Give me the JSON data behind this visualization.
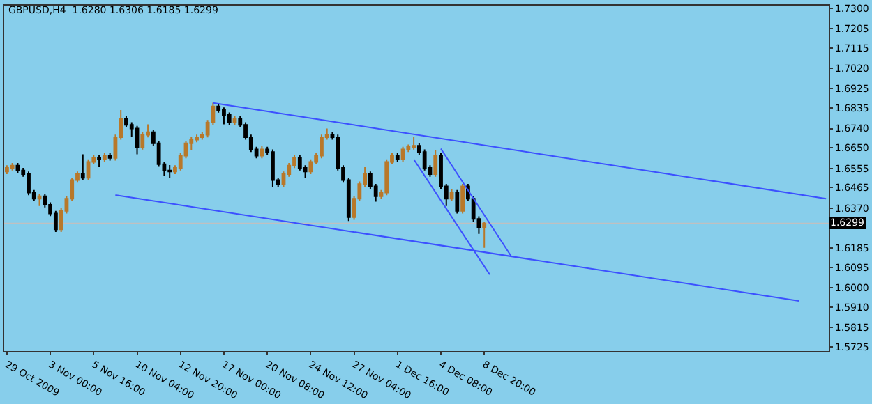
{
  "chart_data": {
    "type": "candlestick",
    "title": "GBPUSD,H4  1.6280 1.6306 1.6185 1.6299",
    "categories": [
      "29 Oct 2009",
      null,
      null,
      null,
      null,
      null,
      null,
      null,
      "3 Nov 00:00",
      null,
      null,
      null,
      null,
      null,
      null,
      null,
      "5 Nov 16:00",
      null,
      null,
      null,
      null,
      null,
      null,
      null,
      "10 Nov 04:00",
      null,
      null,
      null,
      null,
      null,
      null,
      null,
      "12 Nov 20:00",
      null,
      null,
      null,
      null,
      null,
      null,
      null,
      "17 Nov 00:00",
      null,
      null,
      null,
      null,
      null,
      null,
      null,
      "20 Nov 08:00",
      null,
      null,
      null,
      null,
      null,
      null,
      null,
      "24 Nov 12:00",
      null,
      null,
      null,
      null,
      null,
      null,
      null,
      "27 Nov 04:00",
      null,
      null,
      null,
      null,
      null,
      null,
      null,
      "1 Dec 16:00",
      null,
      null,
      null,
      null,
      null,
      null,
      null,
      "4 Dec 08:00",
      null,
      null,
      null,
      null,
      null,
      null,
      null,
      "8 Dec 20:00",
      null,
      null,
      null,
      null,
      null,
      null,
      null,
      null,
      null,
      null,
      null,
      null,
      null,
      null,
      null,
      null,
      null,
      null,
      null,
      null,
      null,
      null,
      null,
      null,
      null,
      null,
      null,
      null,
      null,
      null,
      null,
      null,
      null,
      null,
      null,
      null,
      null,
      null,
      null,
      null,
      null,
      null,
      null,
      null,
      null,
      null,
      null,
      null,
      null,
      null,
      null,
      null,
      null,
      null,
      null,
      null,
      null,
      null,
      null,
      null,
      null,
      null,
      null
    ],
    "ohlc": [
      [
        1.654,
        1.6569,
        1.6528,
        1.6557
      ],
      [
        1.6557,
        1.658,
        1.6545,
        1.6568
      ],
      [
        1.6568,
        1.658,
        1.6533,
        1.6545
      ],
      [
        1.6545,
        1.6557,
        1.6516,
        1.6528
      ],
      [
        1.6528,
        1.654,
        1.643,
        1.6442
      ],
      [
        1.6442,
        1.6454,
        1.6402,
        1.6414
      ],
      [
        1.6414,
        1.6437,
        1.638,
        1.6425
      ],
      [
        1.6425,
        1.6437,
        1.6373,
        1.6385
      ],
      [
        1.6385,
        1.6397,
        1.6333,
        1.6345
      ],
      [
        1.6345,
        1.6357,
        1.6259,
        1.6271
      ],
      [
        1.6271,
        1.6369,
        1.6259,
        1.6357
      ],
      [
        1.6357,
        1.6426,
        1.6345,
        1.6414
      ],
      [
        1.6414,
        1.6512,
        1.6402,
        1.65
      ],
      [
        1.65,
        1.654,
        1.6488,
        1.6528
      ],
      [
        1.6528,
        1.662,
        1.6499,
        1.6511
      ],
      [
        1.6511,
        1.6597,
        1.6499,
        1.6585
      ],
      [
        1.6585,
        1.6615,
        1.6573,
        1.6603
      ],
      [
        1.6603,
        1.6615,
        1.656,
        1.6597
      ],
      [
        1.6597,
        1.6626,
        1.6585,
        1.6614
      ],
      [
        1.6614,
        1.6626,
        1.6591,
        1.6603
      ],
      [
        1.6603,
        1.6712,
        1.6591,
        1.67
      ],
      [
        1.67,
        1.6826,
        1.6688,
        1.6786
      ],
      [
        1.6786,
        1.6798,
        1.6745,
        1.6757
      ],
      [
        1.6757,
        1.6769,
        1.67,
        1.674
      ],
      [
        1.674,
        1.6752,
        1.662,
        1.6654
      ],
      [
        1.6654,
        1.6723,
        1.6642,
        1.6711
      ],
      [
        1.6711,
        1.676,
        1.6699,
        1.6723
      ],
      [
        1.6723,
        1.6735,
        1.6659,
        1.6671
      ],
      [
        1.6671,
        1.6683,
        1.6562,
        1.6574
      ],
      [
        1.6574,
        1.6586,
        1.652,
        1.6545
      ],
      [
        1.6545,
        1.657,
        1.651,
        1.654
      ],
      [
        1.654,
        1.6569,
        1.6528,
        1.6557
      ],
      [
        1.6557,
        1.6626,
        1.6545,
        1.6614
      ],
      [
        1.6614,
        1.6683,
        1.6602,
        1.6671
      ],
      [
        1.6671,
        1.67,
        1.664,
        1.6688
      ],
      [
        1.6688,
        1.6712,
        1.6676,
        1.67
      ],
      [
        1.67,
        1.6723,
        1.6688,
        1.6711
      ],
      [
        1.6711,
        1.678,
        1.6699,
        1.6768
      ],
      [
        1.6768,
        1.686,
        1.6756,
        1.6843
      ],
      [
        1.6843,
        1.6855,
        1.6814,
        1.6826
      ],
      [
        1.6826,
        1.6838,
        1.676,
        1.6803
      ],
      [
        1.6803,
        1.6815,
        1.6756,
        1.6768
      ],
      [
        1.6768,
        1.6798,
        1.6756,
        1.6786
      ],
      [
        1.6786,
        1.6798,
        1.6745,
        1.6757
      ],
      [
        1.6757,
        1.6769,
        1.6688,
        1.67
      ],
      [
        1.67,
        1.6712,
        1.6631,
        1.6643
      ],
      [
        1.6643,
        1.6655,
        1.6602,
        1.6614
      ],
      [
        1.6614,
        1.666,
        1.6602,
        1.6643
      ],
      [
        1.6643,
        1.6655,
        1.6619,
        1.6631
      ],
      [
        1.6631,
        1.6643,
        1.647,
        1.65
      ],
      [
        1.65,
        1.6512,
        1.647,
        1.6482
      ],
      [
        1.6482,
        1.654,
        1.647,
        1.6528
      ],
      [
        1.6528,
        1.658,
        1.6516,
        1.6568
      ],
      [
        1.6568,
        1.6615,
        1.6556,
        1.6603
      ],
      [
        1.6603,
        1.6615,
        1.6545,
        1.6557
      ],
      [
        1.6557,
        1.6569,
        1.651,
        1.654
      ],
      [
        1.654,
        1.6597,
        1.6528,
        1.6585
      ],
      [
        1.6585,
        1.6626,
        1.6573,
        1.6614
      ],
      [
        1.6614,
        1.6712,
        1.6602,
        1.67
      ],
      [
        1.67,
        1.674,
        1.6688,
        1.6711
      ],
      [
        1.6711,
        1.6723,
        1.6688,
        1.67
      ],
      [
        1.67,
        1.6712,
        1.6545,
        1.6557
      ],
      [
        1.6557,
        1.6569,
        1.6488,
        1.65
      ],
      [
        1.65,
        1.6512,
        1.631,
        1.6328
      ],
      [
        1.6328,
        1.6426,
        1.6316,
        1.6414
      ],
      [
        1.6414,
        1.6494,
        1.6402,
        1.6482
      ],
      [
        1.6482,
        1.656,
        1.647,
        1.6528
      ],
      [
        1.6528,
        1.654,
        1.6459,
        1.6471
      ],
      [
        1.6471,
        1.6483,
        1.64,
        1.6425
      ],
      [
        1.6425,
        1.6454,
        1.6413,
        1.6442
      ],
      [
        1.6442,
        1.6597,
        1.643,
        1.6585
      ],
      [
        1.6585,
        1.6626,
        1.6573,
        1.6614
      ],
      [
        1.6614,
        1.6626,
        1.6585,
        1.6597
      ],
      [
        1.6597,
        1.6655,
        1.6585,
        1.6643
      ],
      [
        1.6643,
        1.6666,
        1.6631,
        1.6654
      ],
      [
        1.6654,
        1.67,
        1.6642,
        1.666
      ],
      [
        1.666,
        1.6672,
        1.6619,
        1.6631
      ],
      [
        1.6631,
        1.6643,
        1.6545,
        1.6557
      ],
      [
        1.6557,
        1.6569,
        1.6516,
        1.6528
      ],
      [
        1.6528,
        1.664,
        1.6516,
        1.6614
      ],
      [
        1.6614,
        1.6626,
        1.6459,
        1.6471
      ],
      [
        1.6471,
        1.6483,
        1.638,
        1.6414
      ],
      [
        1.6414,
        1.646,
        1.6402,
        1.6442
      ],
      [
        1.6442,
        1.6454,
        1.6345,
        1.6357
      ],
      [
        1.6357,
        1.6483,
        1.6345,
        1.6471
      ],
      [
        1.6471,
        1.6483,
        1.6402,
        1.6414
      ],
      [
        1.6414,
        1.6426,
        1.6308,
        1.632
      ],
      [
        1.632,
        1.6332,
        1.625,
        1.628
      ],
      [
        1.628,
        1.6306,
        1.6185,
        1.6299
      ],
      null,
      null,
      null,
      null,
      null,
      null,
      null,
      null,
      null,
      null,
      null,
      null,
      null,
      null,
      null,
      null,
      null,
      null,
      null,
      null,
      null,
      null,
      null,
      null,
      null,
      null,
      null,
      null,
      null,
      null,
      null,
      null,
      null,
      null,
      null,
      null,
      null,
      null,
      null,
      null,
      null,
      null,
      null,
      null,
      null,
      null,
      null,
      null,
      null,
      null,
      null,
      null,
      null,
      null,
      null,
      null,
      null,
      null,
      null,
      null,
      null,
      null,
      null
    ],
    "colors": [
      "#b8782a",
      "#b8782a",
      "#000000",
      "#000000",
      "#000000",
      "#000000",
      "#b8782a",
      "#000000",
      "#000000",
      "#000000",
      "#b8782a",
      "#b8782a",
      "#b8782a",
      "#b8782a",
      "#000000",
      "#b8782a",
      "#b8782a",
      "#000000",
      "#b8782a",
      "#000000",
      "#b8782a",
      "#b8782a",
      "#000000",
      "#000000",
      "#000000",
      "#b8782a",
      "#b8782a",
      "#000000",
      "#000000",
      "#000000",
      "#000000",
      "#b8782a",
      "#b8782a",
      "#b8782a",
      "#b8782a",
      "#b8782a",
      "#b8782a",
      "#b8782a",
      "#b8782a",
      "#000000",
      "#000000",
      "#000000",
      "#b8782a",
      "#000000",
      "#000000",
      "#000000",
      "#000000",
      "#b8782a",
      "#000000",
      "#000000",
      "#000000",
      "#b8782a",
      "#b8782a",
      "#b8782a",
      "#000000",
      "#000000",
      "#b8782a",
      "#b8782a",
      "#b8782a",
      "#b8782a",
      "#000000",
      "#000000",
      "#000000",
      "#000000",
      "#b8782a",
      "#b8782a",
      "#b8782a",
      "#000000",
      "#000000",
      "#b8782a",
      "#b8782a",
      "#b8782a",
      "#000000",
      "#b8782a",
      "#b8782a",
      "#b8782a",
      "#000000",
      "#000000",
      "#000000",
      "#b8782a",
      "#000000",
      "#000000",
      "#b8782a",
      "#000000",
      "#b8782a",
      "#000000",
      "#000000",
      "#000000",
      "#b8782a",
      null,
      null,
      null,
      null,
      null,
      null,
      null,
      null,
      null,
      null,
      null,
      null,
      null,
      null,
      null,
      null,
      null,
      null,
      null,
      null,
      null,
      null,
      null,
      null,
      null,
      null,
      null,
      null,
      null,
      null,
      null,
      null,
      null,
      null,
      null,
      null,
      null,
      null,
      null,
      null,
      null,
      null,
      null,
      null,
      null,
      null,
      null,
      null,
      null,
      null,
      null,
      null,
      null,
      null,
      null,
      null,
      null,
      null,
      null,
      null,
      null,
      null,
      null
    ],
    "series": [
      {
        "type": "line",
        "color": "#3c50ff",
        "values": [
          null,
          null,
          null,
          null,
          null,
          null,
          null,
          null,
          null,
          null,
          null,
          null,
          null,
          null,
          null,
          null,
          null,
          null,
          null,
          null,
          null,
          null,
          null,
          null,
          null,
          null,
          null,
          null,
          null,
          null,
          null,
          null,
          null,
          null,
          null,
          null,
          null,
          null,
          1.6859,
          null,
          null,
          null,
          null,
          null,
          null,
          null,
          null,
          null,
          null,
          null,
          null,
          null,
          null,
          null,
          null,
          null,
          null,
          null,
          null,
          null,
          null,
          null,
          null,
          null,
          null,
          null,
          null,
          null,
          null,
          null,
          null,
          null,
          null,
          null,
          null,
          null,
          null,
          null,
          null,
          null,
          null,
          null,
          null,
          null,
          null,
          null,
          null,
          null,
          null,
          null,
          null,
          null,
          null,
          null,
          null,
          null,
          null,
          null,
          null,
          null,
          null,
          null,
          null,
          null,
          null,
          null,
          null,
          null,
          null,
          null,
          null,
          null,
          null,
          null,
          null,
          null,
          null,
          null,
          null,
          null,
          null,
          null,
          null,
          null,
          null,
          null,
          null,
          null,
          null,
          null,
          null,
          null,
          null,
          null,
          null,
          null,
          null,
          null,
          null,
          null,
          null,
          null,
          null,
          null,
          null,
          null,
          null,
          null,
          null,
          null,
          null,
          1.6414
        ]
      },
      {
        "type": "line",
        "color": "#3c50ff",
        "values": [
          null,
          null,
          null,
          null,
          null,
          null,
          null,
          null,
          null,
          null,
          null,
          null,
          null,
          null,
          null,
          null,
          null,
          null,
          null,
          null,
          1.6431,
          null,
          null,
          null,
          null,
          null,
          null,
          null,
          null,
          null,
          null,
          null,
          null,
          null,
          null,
          null,
          null,
          null,
          null,
          null,
          null,
          null,
          null,
          null,
          null,
          null,
          null,
          null,
          null,
          null,
          null,
          null,
          null,
          null,
          null,
          null,
          null,
          null,
          null,
          null,
          null,
          null,
          null,
          null,
          null,
          null,
          null,
          null,
          null,
          null,
          null,
          null,
          null,
          null,
          null,
          null,
          null,
          null,
          null,
          null,
          null,
          null,
          null,
          null,
          null,
          null,
          null,
          null,
          null,
          null,
          null,
          null,
          null,
          null,
          null,
          null,
          null,
          null,
          null,
          null,
          null,
          null,
          null,
          null,
          null,
          null,
          null,
          null,
          null,
          null,
          null,
          null,
          null,
          null,
          null,
          null,
          null,
          null,
          null,
          null,
          null,
          null,
          null,
          null,
          null,
          null,
          null,
          null,
          null,
          null,
          null,
          null,
          null,
          null,
          null,
          null,
          null,
          null,
          null,
          null,
          null,
          null,
          null,
          null,
          null,
          null,
          1.5938,
          null,
          null,
          null,
          null,
          null
        ]
      },
      {
        "type": "line",
        "color": "#3c50ff",
        "values": [
          null,
          null,
          null,
          null,
          null,
          null,
          null,
          null,
          null,
          null,
          null,
          null,
          null,
          null,
          null,
          null,
          null,
          null,
          null,
          null,
          null,
          null,
          null,
          null,
          null,
          null,
          null,
          null,
          null,
          null,
          null,
          null,
          null,
          null,
          null,
          null,
          null,
          null,
          null,
          null,
          null,
          null,
          null,
          null,
          null,
          null,
          null,
          null,
          null,
          null,
          null,
          null,
          null,
          null,
          null,
          null,
          null,
          null,
          null,
          null,
          null,
          null,
          null,
          null,
          null,
          null,
          null,
          null,
          null,
          null,
          null,
          null,
          null,
          null,
          null,
          null,
          null,
          null,
          null,
          null,
          1.6646,
          null,
          null,
          null,
          null,
          null,
          null,
          null,
          null,
          null,
          null,
          null,
          null,
          1.6145,
          null,
          null,
          null,
          null,
          null,
          null,
          null,
          null,
          null,
          null,
          null,
          null,
          null,
          null,
          null,
          null,
          null,
          null,
          null,
          null,
          null,
          null,
          null,
          null,
          null,
          null,
          null,
          null,
          null,
          null,
          null,
          null,
          null,
          null,
          null,
          null,
          null,
          null,
          null,
          null,
          null,
          null,
          null,
          null,
          null,
          null,
          null,
          null,
          null,
          null,
          null,
          null,
          null,
          null,
          null,
          null,
          null,
          null
        ]
      },
      {
        "type": "line",
        "color": "#3c50ff",
        "values": [
          null,
          null,
          null,
          null,
          null,
          null,
          null,
          null,
          null,
          null,
          null,
          null,
          null,
          null,
          null,
          null,
          null,
          null,
          null,
          null,
          null,
          null,
          null,
          null,
          null,
          null,
          null,
          null,
          null,
          null,
          null,
          null,
          null,
          null,
          null,
          null,
          null,
          null,
          null,
          null,
          null,
          null,
          null,
          null,
          null,
          null,
          null,
          null,
          null,
          null,
          null,
          null,
          null,
          null,
          null,
          null,
          null,
          null,
          null,
          null,
          null,
          null,
          null,
          null,
          null,
          null,
          null,
          null,
          null,
          null,
          null,
          null,
          null,
          null,
          null,
          1.6597,
          null,
          null,
          null,
          null,
          null,
          null,
          null,
          null,
          null,
          null,
          null,
          null,
          null,
          1.6061,
          null,
          null,
          null,
          null,
          null,
          null,
          null,
          null,
          null,
          null,
          null,
          null,
          null,
          null,
          null,
          null,
          null,
          null,
          null,
          null,
          null,
          null,
          null,
          null,
          null,
          null,
          null,
          null,
          null,
          null,
          null,
          null,
          null,
          null,
          null,
          null,
          null,
          null,
          null,
          null,
          null,
          null,
          null,
          null,
          null,
          null,
          null,
          null,
          null,
          null,
          null,
          null,
          null,
          null,
          null,
          null,
          null,
          null,
          null,
          null,
          null,
          null
        ]
      }
    ],
    "ref_lines": [
      {
        "axis": "y",
        "value": 1.6299,
        "label": "1.6299",
        "color": "#c0c0c0"
      }
    ],
    "ylim": [
      1.5705,
      1.7312
    ],
    "yticks": [
      {
        "value": 1.5725,
        "label": "1.5725"
      },
      {
        "value": 1.5815,
        "label": "1.5815"
      },
      {
        "value": 1.591,
        "label": "1.5910"
      },
      {
        "value": 1.6,
        "label": "1.6000"
      },
      {
        "value": 1.6095,
        "label": "1.6095"
      },
      {
        "value": 1.6185,
        "label": "1.6185"
      },
      {
        "value": 1.628,
        "label": null
      },
      {
        "value": 1.637,
        "label": "1.6370"
      },
      {
        "value": 1.6465,
        "label": "1.6465"
      },
      {
        "value": 1.6555,
        "label": "1.6555"
      },
      {
        "value": 1.665,
        "label": "1.6650"
      },
      {
        "value": 1.674,
        "label": "1.6740"
      },
      {
        "value": 1.6835,
        "label": "1.6835"
      },
      {
        "value": 1.6925,
        "label": "1.6925"
      },
      {
        "value": 1.702,
        "label": "1.7020"
      },
      {
        "value": 1.7115,
        "label": "1.7115"
      },
      {
        "value": 1.7205,
        "label": "1.7205"
      },
      {
        "value": 1.73,
        "label": "1.7300"
      }
    ],
    "grid": false
  }
}
